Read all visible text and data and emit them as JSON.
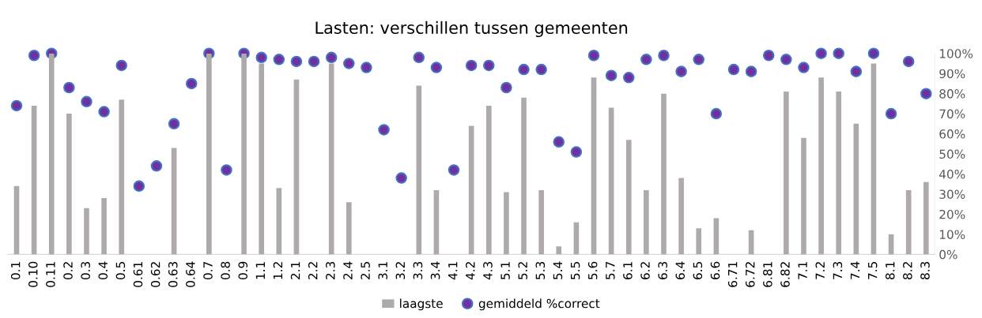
{
  "chart_data": {
    "type": "bar",
    "title": "Lasten: verschillen tussen gemeenten",
    "categories": [
      "0.1",
      "0.10",
      "0.11",
      "0.2",
      "0.3",
      "0.4",
      "0.5",
      "0.61",
      "0.62",
      "0.63",
      "0.64",
      "0.7",
      "0.8",
      "0.9",
      "1.1",
      "1.2",
      "2.1",
      "2.2",
      "2.3",
      "2.4",
      "2.5",
      "3.1",
      "3.2",
      "3.3",
      "3.4",
      "4.1",
      "4.2",
      "4.3",
      "5.1",
      "5.2",
      "5.3",
      "5.4",
      "5.5",
      "5.6",
      "5.7",
      "6.1",
      "6.2",
      "6.3",
      "6.4",
      "6.5",
      "6.6",
      "6.71",
      "6.72",
      "6.81",
      "6.82",
      "7.1",
      "7.2",
      "7.3",
      "7.4",
      "7.5",
      "8.1",
      "8.2",
      "8.3"
    ],
    "series": [
      {
        "name": "laagste",
        "color": "#aeaaaa",
        "values": [
          34,
          74,
          100,
          70,
          23,
          28,
          77,
          null,
          null,
          53,
          null,
          100,
          null,
          100,
          95,
          33,
          87,
          null,
          95,
          26,
          null,
          null,
          null,
          84,
          32,
          null,
          64,
          74,
          31,
          78,
          32,
          4,
          16,
          88,
          73,
          57,
          32,
          80,
          38,
          13,
          18,
          null,
          12,
          null,
          81,
          58,
          88,
          81,
          65,
          95,
          10,
          32,
          36
        ]
      },
      {
        "name": "gemiddeld %correct",
        "type": "scatter",
        "color": "#7030a0",
        "values": [
          74,
          99,
          100,
          83,
          76,
          71,
          94,
          34,
          44,
          65,
          85,
          100,
          42,
          100,
          98,
          97,
          96,
          96,
          98,
          95,
          93,
          62,
          38,
          98,
          93,
          42,
          94,
          94,
          83,
          92,
          92,
          56,
          51,
          99,
          89,
          88,
          97,
          99,
          91,
          97,
          70,
          92,
          91,
          99,
          97,
          93,
          100,
          100,
          91,
          100,
          70,
          96,
          80
        ]
      }
    ],
    "ylim": [
      0,
      100
    ],
    "yticks": [
      {
        "value": 0,
        "label": "0%"
      },
      {
        "value": 10,
        "label": "10%"
      },
      {
        "value": 20,
        "label": "20%"
      },
      {
        "value": 30,
        "label": "30%"
      },
      {
        "value": 40,
        "label": "40%"
      },
      {
        "value": 50,
        "label": "50%"
      },
      {
        "value": 60,
        "label": "60%"
      },
      {
        "value": 70,
        "label": "70%"
      },
      {
        "value": 80,
        "label": "80%"
      },
      {
        "value": 90,
        "label": "90%"
      },
      {
        "value": 100,
        "label": "100%"
      }
    ],
    "grid": false,
    "legend": "bottom",
    "marker": "circle"
  }
}
